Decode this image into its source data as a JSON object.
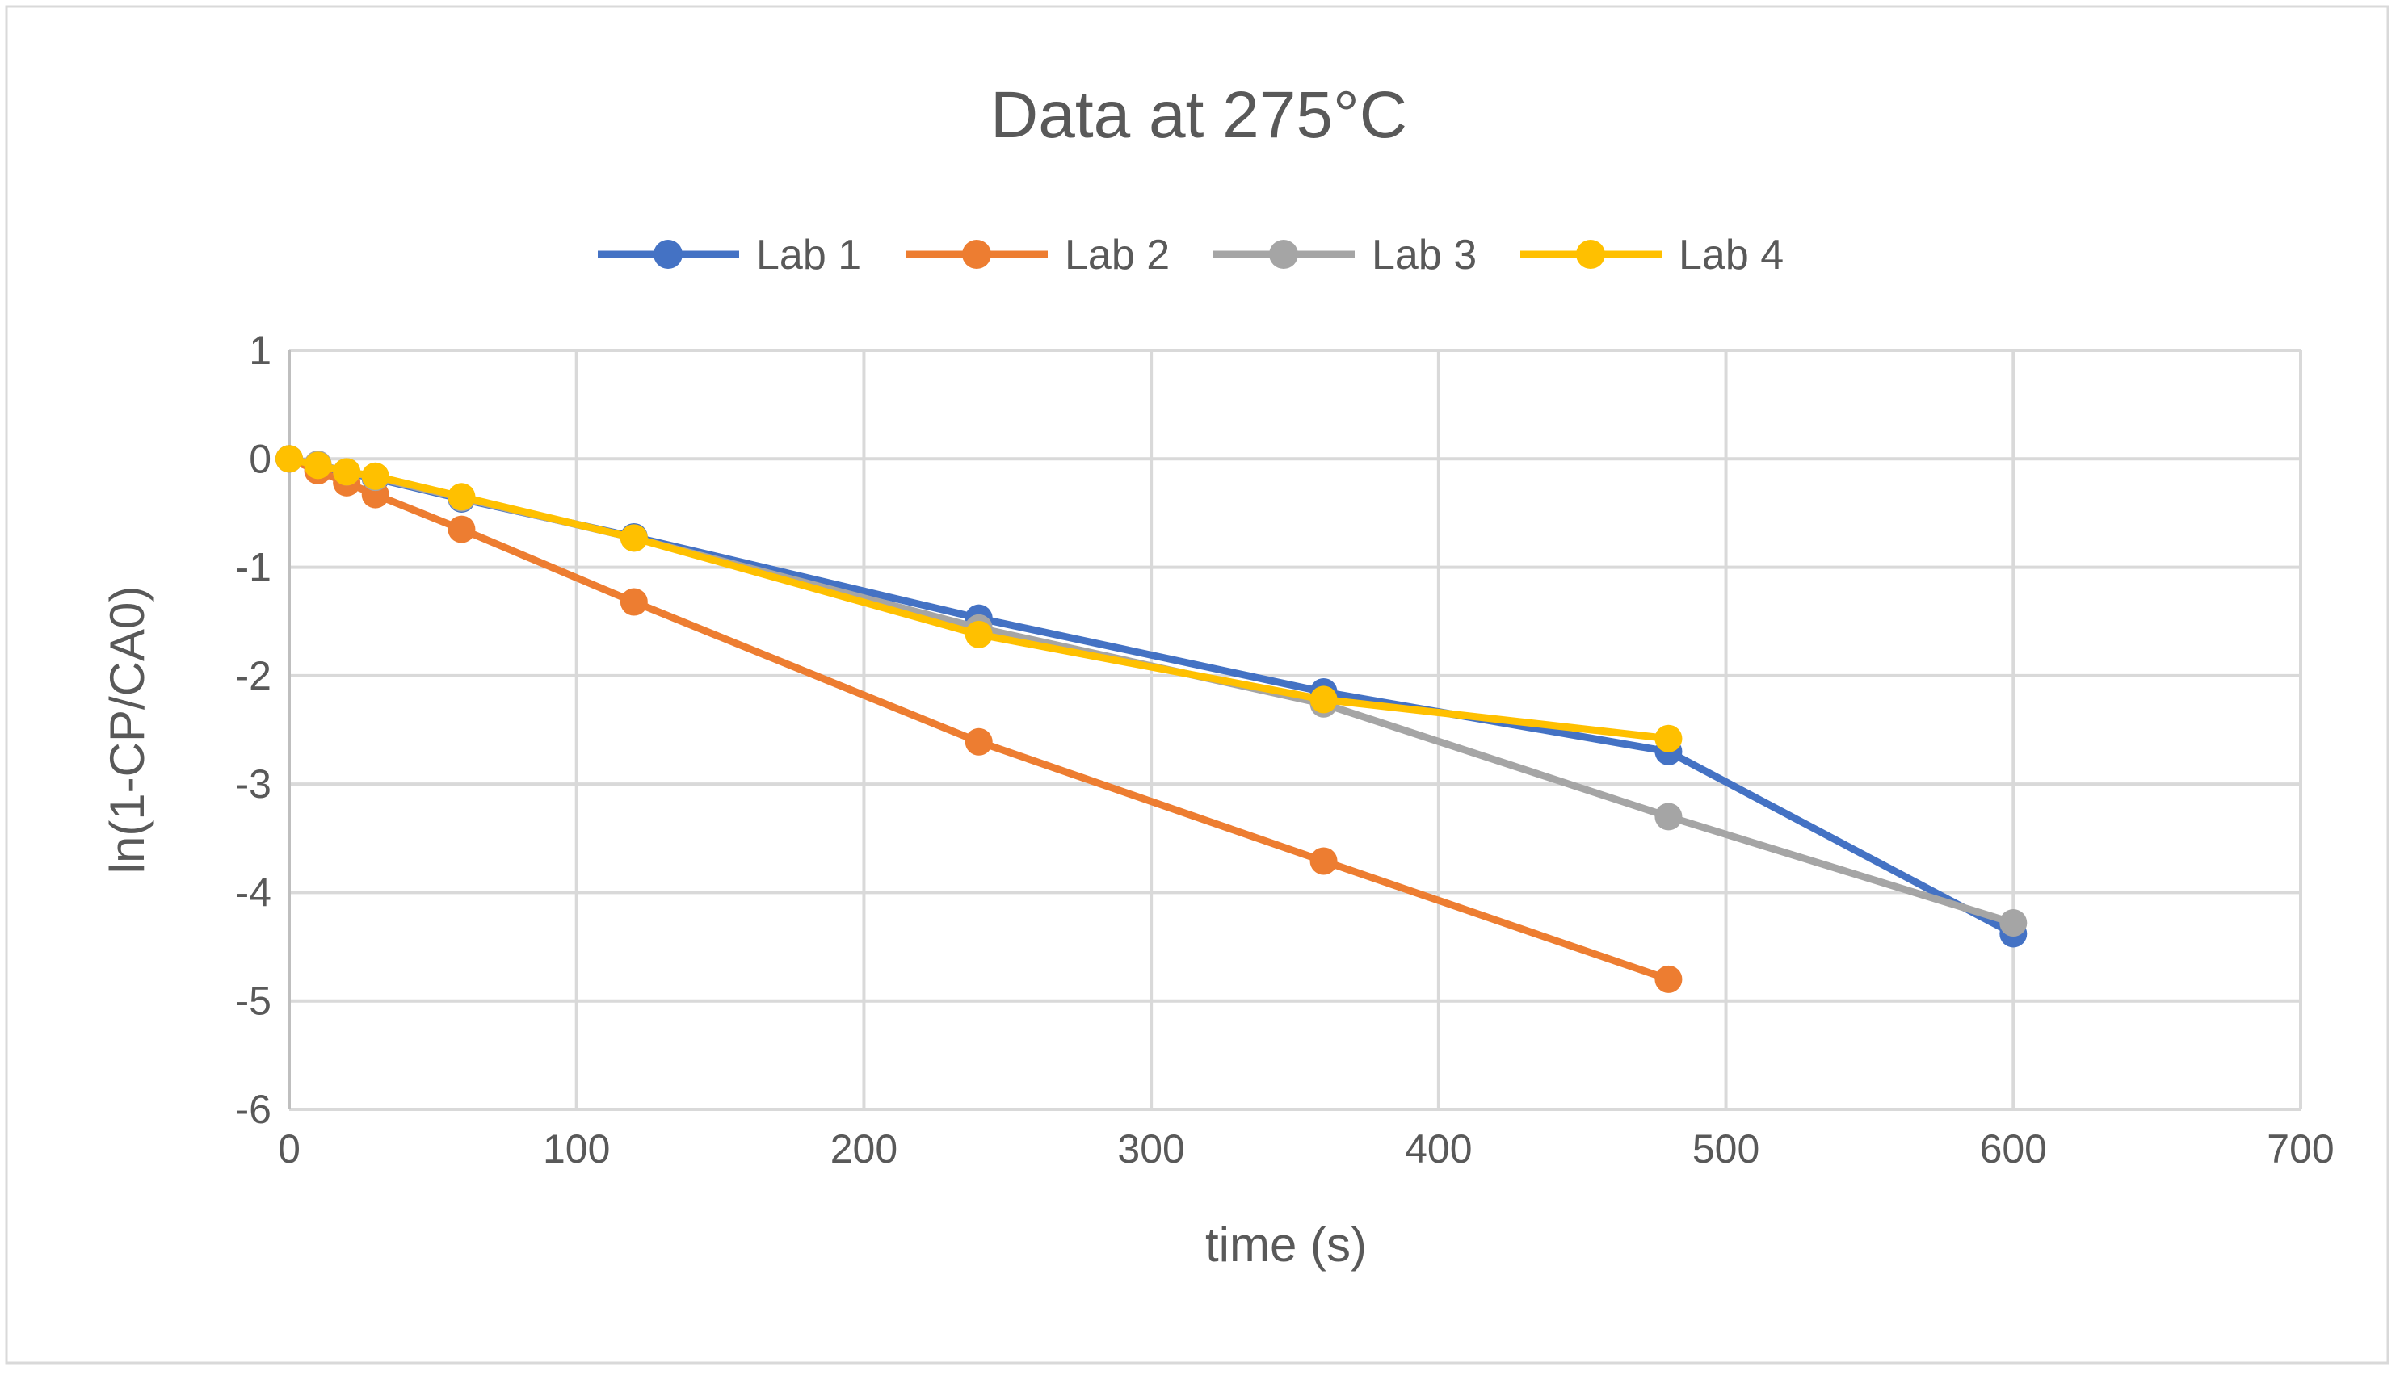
{
  "chart_data": {
    "type": "line",
    "title": "Data at 275°C",
    "xlabel": "time (s)",
    "ylabel": "ln(1-CP/CA0)",
    "xlim": [
      0,
      700
    ],
    "ylim": [
      -6,
      1
    ],
    "xticks": [
      0,
      100,
      200,
      300,
      400,
      500,
      600,
      700
    ],
    "yticks": [
      1,
      0,
      -1,
      -2,
      -3,
      -4,
      -5,
      -6
    ],
    "grid": true,
    "legend_position": "top",
    "series": [
      {
        "name": "Lab 1",
        "color": "#4472C4",
        "x": [
          0,
          10,
          20,
          30,
          60,
          120,
          240,
          360,
          480,
          600
        ],
        "y": [
          0,
          -0.08,
          -0.13,
          -0.18,
          -0.37,
          -0.72,
          -1.47,
          -2.15,
          -2.7,
          -4.38
        ]
      },
      {
        "name": "Lab 2",
        "color": "#ED7D31",
        "x": [
          0,
          10,
          20,
          30,
          60,
          120,
          240,
          360,
          480
        ],
        "y": [
          0,
          -0.11,
          -0.22,
          -0.33,
          -0.65,
          -1.32,
          -2.61,
          -3.71,
          -4.8
        ]
      },
      {
        "name": "Lab 3",
        "color": "#A5A5A5",
        "x": [
          0,
          10,
          20,
          30,
          60,
          120,
          240,
          360,
          480,
          600
        ],
        "y": [
          0,
          -0.05,
          -0.12,
          -0.17,
          -0.36,
          -0.73,
          -1.56,
          -2.26,
          -3.3,
          -4.28
        ]
      },
      {
        "name": "Lab 4",
        "color": "#FFC000",
        "x": [
          0,
          10,
          20,
          30,
          60,
          120,
          240,
          360,
          480
        ],
        "y": [
          0,
          -0.06,
          -0.12,
          -0.16,
          -0.35,
          -0.73,
          -1.62,
          -2.22,
          -2.58
        ]
      }
    ]
  }
}
